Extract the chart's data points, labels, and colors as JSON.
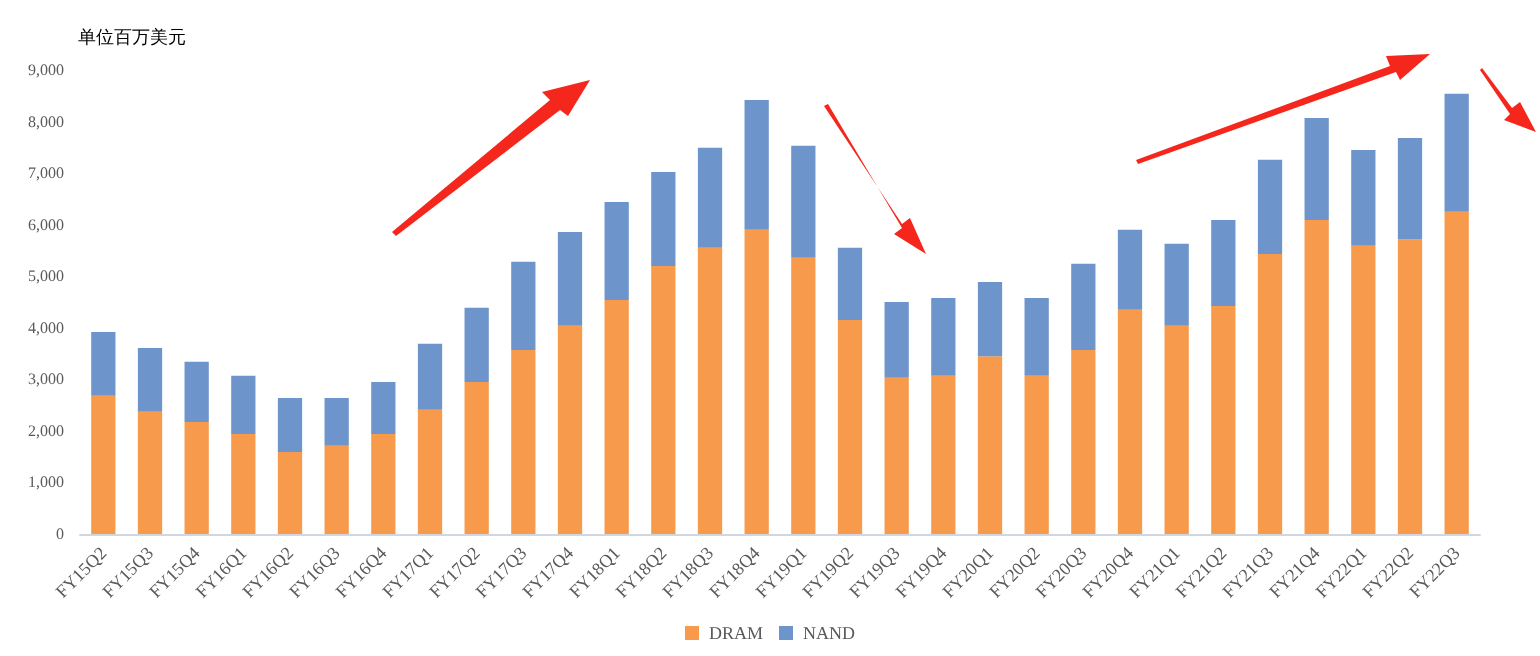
{
  "chart_data": {
    "type": "bar",
    "stacked": true,
    "ylabel": "单位百万美元",
    "categories": [
      "FY15Q2",
      "FY15Q3",
      "FY15Q4",
      "FY16Q1",
      "FY16Q2",
      "FY16Q3",
      "FY16Q4",
      "FY17Q1",
      "FY17Q2",
      "FY17Q3",
      "FY17Q4",
      "FY18Q1",
      "FY18Q2",
      "FY18Q3",
      "FY18Q4",
      "FY19Q1",
      "FY19Q2",
      "FY19Q3",
      "FY19Q4",
      "FY20Q1",
      "FY20Q2",
      "FY20Q3",
      "FY20Q4",
      "FY21Q1",
      "FY21Q2",
      "FY21Q3",
      "FY21Q4",
      "FY22Q1",
      "FY22Q2",
      "FY22Q3"
    ],
    "series": [
      {
        "name": "DRAM",
        "color": "#f79a4c",
        "values": [
          2680,
          2370,
          2170,
          1940,
          1590,
          1710,
          1940,
          2410,
          2950,
          3570,
          4040,
          4540,
          5200,
          5550,
          5900,
          5360,
          4150,
          3030,
          3070,
          3450,
          3070,
          3570,
          4350,
          4040,
          4420,
          5430,
          6090,
          5590,
          5710,
          6250
        ]
      },
      {
        "name": "NAND",
        "color": "#6d95cb",
        "values": [
          1240,
          1240,
          1170,
          1130,
          1050,
          930,
          1010,
          1280,
          1440,
          1710,
          1820,
          1900,
          1820,
          1940,
          2520,
          2170,
          1400,
          1470,
          1510,
          1440,
          1510,
          1670,
          1550,
          1590,
          1670,
          1830,
          1980,
          1860,
          1970,
          2290
        ]
      }
    ],
    "ylim": [
      0,
      9000
    ],
    "yticks": [
      0,
      {
        "value": 1000,
        "label": "1,000"
      },
      {
        "value": 2000,
        "label": "2,000"
      },
      {
        "value": 3000,
        "label": "3,000"
      },
      {
        "value": 4000,
        "label": "4,000"
      },
      {
        "value": 5000,
        "label": "5,000"
      },
      {
        "value": 6000,
        "label": "6,000"
      },
      {
        "value": 7000,
        "label": "7,000"
      },
      {
        "value": 8000,
        "label": "8,000"
      },
      {
        "value": 9000,
        "label": "9,000"
      }
    ],
    "grid": false,
    "legend": "bottom"
  }
}
